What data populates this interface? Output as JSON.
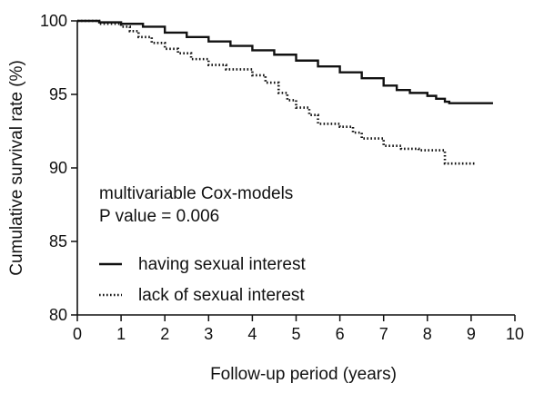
{
  "chart_data": {
    "type": "line",
    "title": "",
    "xlabel": "Follow-up period (years)",
    "ylabel": "Cumulative survival rate (%)",
    "xlim": [
      0,
      10
    ],
    "ylim": [
      80,
      100
    ],
    "xticks": [
      0,
      1,
      2,
      3,
      4,
      5,
      6,
      7,
      8,
      9,
      10
    ],
    "yticks": [
      80,
      85,
      90,
      95,
      100
    ],
    "grid": false,
    "legend_position": "bottom-left",
    "annotations": [
      "multivariable Cox-models",
      "P value = 0.006"
    ],
    "series": [
      {
        "name": "having sexual interest",
        "style": "solid",
        "color": "#111111",
        "step": true,
        "x": [
          0,
          0.5,
          1,
          1.5,
          2,
          2.5,
          3,
          3.5,
          4,
          4.5,
          5,
          5.5,
          6,
          6.5,
          7,
          7.3,
          7.6,
          8.0,
          8.2,
          8.4,
          8.5,
          9.0,
          9.5
        ],
        "y": [
          100,
          99.9,
          99.8,
          99.6,
          99.2,
          98.9,
          98.6,
          98.3,
          98.0,
          97.7,
          97.3,
          96.9,
          96.5,
          96.1,
          95.6,
          95.3,
          95.1,
          94.9,
          94.7,
          94.5,
          94.4,
          94.4,
          94.4
        ]
      },
      {
        "name": "lack of sexual interest",
        "style": "dotted",
        "color": "#111111",
        "step": true,
        "x": [
          0,
          0.5,
          1.0,
          1.2,
          1.4,
          1.7,
          2.0,
          2.3,
          2.6,
          3.0,
          3.4,
          4.0,
          4.3,
          4.6,
          4.8,
          5.0,
          5.3,
          5.5,
          6.0,
          6.3,
          6.5,
          7.0,
          7.4,
          7.8,
          8.2,
          8.4,
          8.6,
          9.1
        ],
        "y": [
          100,
          99.8,
          99.6,
          99.3,
          98.9,
          98.5,
          98.1,
          97.8,
          97.4,
          97.0,
          96.7,
          96.3,
          95.8,
          95.1,
          94.6,
          94.1,
          93.6,
          93.0,
          92.8,
          92.4,
          92.0,
          91.5,
          91.3,
          91.2,
          91.2,
          90.3,
          90.3,
          90.3
        ]
      }
    ]
  }
}
